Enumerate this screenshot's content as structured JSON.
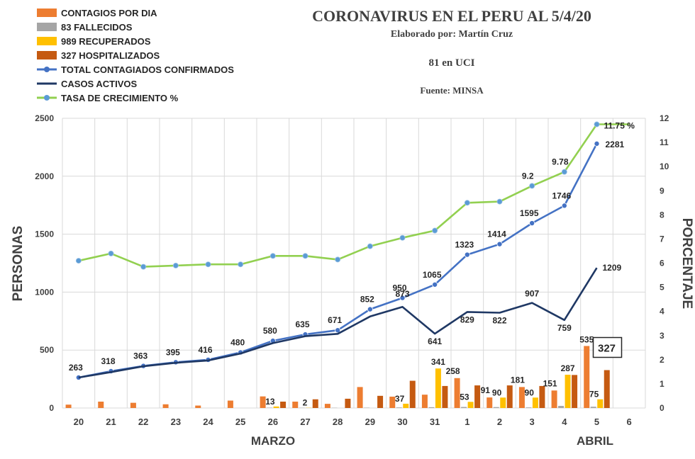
{
  "chart_data": {
    "type": "bar",
    "title": "CORONAVIRUS EN EL PERU AL 5/4/20",
    "subtitle": "Elaborado por: Martín Cruz",
    "note": "81 en UCI",
    "source": "Fuente: MINSA",
    "ylabel_left": "PERSONAS",
    "ylabel_right": "PORCENTAJE",
    "x_group_labels": [
      "MARZO",
      "ABRIL"
    ],
    "categories": [
      "20",
      "21",
      "22",
      "23",
      "24",
      "25",
      "26",
      "27",
      "28",
      "29",
      "30",
      "31",
      "1",
      "2",
      "3",
      "4",
      "5",
      "6"
    ],
    "ylim_left": [
      0,
      2500
    ],
    "yticks_left": [
      "0",
      "500",
      "1000",
      "1500",
      "2000",
      "2500"
    ],
    "ylim_right": [
      0,
      12
    ],
    "yticks_right": [
      "0",
      "1",
      "2",
      "3",
      "4",
      "5",
      "6",
      "7",
      "8",
      "9",
      "10",
      "11",
      "12"
    ],
    "grid": true,
    "legend_position": "top-left",
    "series": [
      {
        "name": "CONTAGIOS POR DIA",
        "kind": "bar",
        "axis": "left",
        "color": "#ED7D31",
        "values": [
          29,
          55,
          45,
          32,
          21,
          64,
          100,
          55,
          36,
          181,
          98,
          115,
          258,
          91,
          181,
          151,
          535,
          null
        ],
        "labels": [
          null,
          null,
          null,
          null,
          null,
          null,
          null,
          null,
          null,
          null,
          null,
          null,
          "258",
          "91",
          "181",
          "151",
          "535",
          null
        ]
      },
      {
        "name": "83 FALLECIDOS",
        "kind": "bar",
        "axis": "left",
        "color": "#A5A5A5",
        "values": [
          0,
          0,
          0,
          0,
          0,
          0,
          3,
          2,
          2,
          3,
          5,
          7,
          9,
          8,
          5,
          18,
          11,
          null
        ],
        "labels": [
          null,
          null,
          null,
          null,
          null,
          null,
          null,
          null,
          null,
          null,
          null,
          null,
          null,
          null,
          null,
          null,
          null,
          null
        ]
      },
      {
        "name": "989 RECUPERADOS",
        "kind": "bar",
        "axis": "left",
        "color": "#FFC000",
        "values": [
          0,
          0,
          0,
          0,
          0,
          0,
          13,
          2,
          0,
          0,
          37,
          341,
          53,
          90,
          90,
          287,
          75,
          null
        ],
        "labels": [
          null,
          null,
          null,
          null,
          null,
          null,
          "13",
          "2",
          null,
          null,
          "37",
          "341",
          "53",
          "90",
          "90",
          "287",
          "75",
          null
        ]
      },
      {
        "name": "327 HOSPITALIZADOS",
        "kind": "bar",
        "axis": "left",
        "color": "#C55A11",
        "values": [
          0,
          0,
          0,
          0,
          0,
          0,
          55,
          75,
          80,
          105,
          235,
          190,
          195,
          195,
          190,
          285,
          327,
          null
        ],
        "labels": [
          null,
          null,
          null,
          null,
          null,
          null,
          null,
          null,
          null,
          null,
          null,
          null,
          null,
          null,
          null,
          null,
          "327",
          null
        ]
      },
      {
        "name": "TOTAL CONTAGIADOS CONFIRMADOS",
        "kind": "line",
        "axis": "left",
        "color": "#4472C4",
        "markers": true,
        "values": [
          263,
          318,
          363,
          395,
          416,
          480,
          580,
          635,
          671,
          852,
          950,
          1065,
          1323,
          1414,
          1595,
          1746,
          2281,
          null
        ],
        "labels": [
          "263",
          "318",
          "363",
          "395",
          "416",
          "480",
          "580",
          "635",
          "671",
          "852",
          "950",
          "1065",
          "1323",
          "1414",
          "1595",
          "1746",
          "2281",
          null
        ]
      },
      {
        "name": "CASOS ACTIVOS",
        "kind": "line",
        "axis": "left",
        "color": "#1F3864",
        "markers": false,
        "values": [
          263,
          310,
          360,
          390,
          410,
          470,
          560,
          620,
          640,
          790,
          873,
          641,
          829,
          822,
          907,
          759,
          1209,
          null
        ],
        "labels": [
          null,
          null,
          null,
          null,
          null,
          null,
          null,
          null,
          null,
          null,
          "873",
          "641",
          "829",
          "822",
          "907",
          "759",
          "1209",
          null
        ]
      },
      {
        "name": "TASA DE CRECIMIENTO %",
        "kind": "line",
        "axis": "right",
        "color": "#92D050",
        "markers": true,
        "values": [
          6.1,
          6.4,
          5.85,
          5.9,
          5.95,
          5.95,
          6.3,
          6.3,
          6.15,
          6.7,
          7.05,
          7.35,
          8.5,
          8.55,
          9.2,
          9.78,
          11.75,
          11.75
        ],
        "labels": [
          null,
          null,
          null,
          null,
          null,
          null,
          null,
          null,
          null,
          null,
          null,
          null,
          null,
          null,
          "9.2",
          "9.78",
          "11.75 %",
          null
        ]
      }
    ]
  }
}
